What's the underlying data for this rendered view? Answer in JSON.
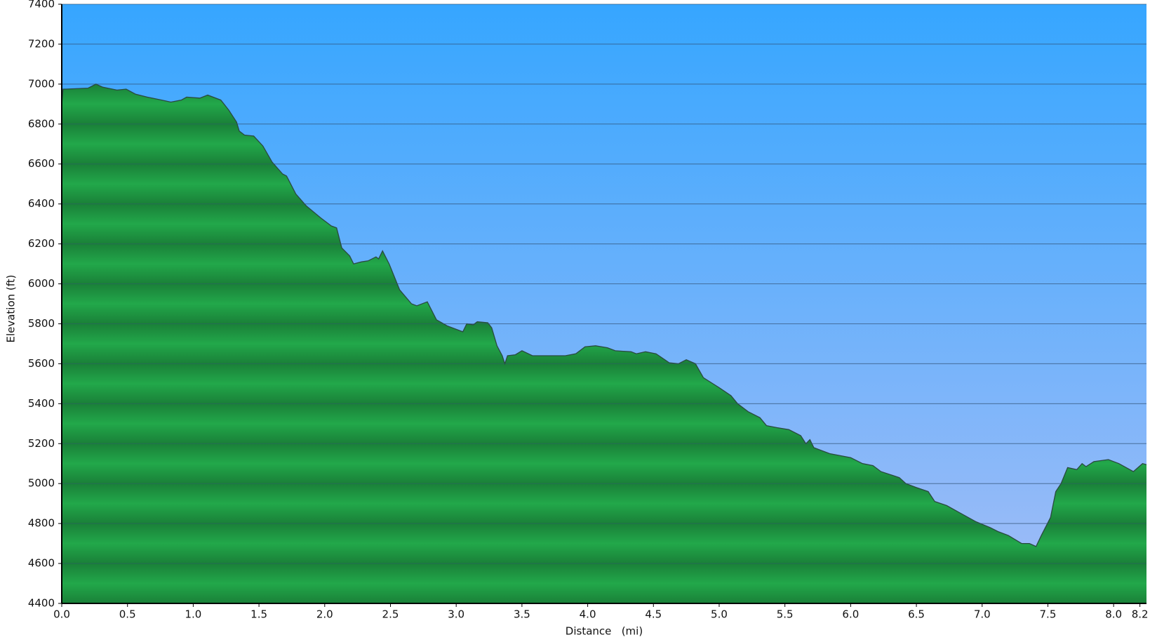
{
  "chart_data": {
    "type": "area",
    "xlabel": "Distance   (mi)",
    "ylabel": "Elevation (ft)",
    "color": "#22a84a",
    "grid": true,
    "xlim": [
      0,
      8.25
    ],
    "ylim": [
      4400,
      7400
    ],
    "xticks": [
      {
        "value": 0,
        "label": "0.0"
      },
      0.5,
      {
        "value": 1,
        "label": "1.0"
      },
      1.5,
      {
        "value": 2,
        "label": "2.0"
      },
      2.5,
      {
        "value": 3,
        "label": "3.0"
      },
      3.5,
      {
        "value": 4,
        "label": "4.0"
      },
      4.5,
      {
        "value": 5,
        "label": "5.0"
      },
      5.5,
      {
        "value": 6,
        "label": "6.0"
      },
      6.5,
      {
        "value": 7,
        "label": "7.0"
      },
      7.5,
      {
        "value": 8,
        "label": "8.0"
      },
      8.2
    ],
    "yticks": [
      4400,
      4600,
      4800,
      5000,
      5200,
      5400,
      5600,
      5800,
      6000,
      6200,
      6400,
      6600,
      6800,
      7000,
      7200,
      7400
    ],
    "x": [
      0,
      0.01,
      0.03,
      0.2,
      0.26,
      0.31,
      0.42,
      0.49,
      0.56,
      0.65,
      0.76,
      0.83,
      0.91,
      0.95,
      1.05,
      1.11,
      1.21,
      1.27,
      1.33,
      1.35,
      1.39,
      1.46,
      1.53,
      1.6,
      1.68,
      1.71,
      1.78,
      1.86,
      1.97,
      2.05,
      2.09,
      2.13,
      2.19,
      2.22,
      2.28,
      2.33,
      2.39,
      2.41,
      2.44,
      2.49,
      2.57,
      2.66,
      2.7,
      2.78,
      2.85,
      2.93,
      3.05,
      3.08,
      3.13,
      3.16,
      3.24,
      3.27,
      3.31,
      3.35,
      3.37,
      3.39,
      3.45,
      3.5,
      3.58,
      3.83,
      3.91,
      3.98,
      4.06,
      4.15,
      4.21,
      4.33,
      4.37,
      4.44,
      4.52,
      4.62,
      4.69,
      4.75,
      4.82,
      4.88,
      5.0,
      5.09,
      5.14,
      5.22,
      5.31,
      5.36,
      5.44,
      5.53,
      5.62,
      5.66,
      5.69,
      5.72,
      5.84,
      6.0,
      6.09,
      6.17,
      6.23,
      6.37,
      6.42,
      6.5,
      6.59,
      6.64,
      6.73,
      6.84,
      6.95,
      7.06,
      7.12,
      7.2,
      7.3,
      7.36,
      7.41,
      7.45,
      7.52,
      7.56,
      7.6,
      7.65,
      7.72,
      7.76,
      7.79,
      7.85,
      7.96,
      8.04,
      8.15,
      8.22,
      8.25
    ],
    "values": [
      6900,
      6975,
      6975,
      6980,
      7000,
      6985,
      6970,
      6975,
      6950,
      6935,
      6920,
      6910,
      6920,
      6935,
      6930,
      6945,
      6920,
      6870,
      6810,
      6765,
      6745,
      6740,
      6690,
      6610,
      6550,
      6540,
      6450,
      6390,
      6330,
      6290,
      6280,
      6180,
      6140,
      6100,
      6110,
      6115,
      6135,
      6125,
      6165,
      6100,
      5970,
      5900,
      5890,
      5910,
      5820,
      5790,
      5760,
      5800,
      5795,
      5810,
      5805,
      5780,
      5690,
      5640,
      5600,
      5640,
      5645,
      5665,
      5640,
      5640,
      5650,
      5685,
      5690,
      5680,
      5665,
      5660,
      5650,
      5660,
      5650,
      5605,
      5600,
      5620,
      5600,
      5530,
      5480,
      5440,
      5400,
      5360,
      5330,
      5290,
      5280,
      5270,
      5240,
      5200,
      5220,
      5180,
      5150,
      5130,
      5100,
      5090,
      5060,
      5030,
      5000,
      4980,
      4960,
      4910,
      4890,
      4850,
      4810,
      4780,
      4760,
      4740,
      4700,
      4700,
      4685,
      4740,
      4830,
      4960,
      5000,
      5080,
      5070,
      5100,
      5085,
      5110,
      5120,
      5100,
      5060,
      5100,
      5095
    ]
  }
}
